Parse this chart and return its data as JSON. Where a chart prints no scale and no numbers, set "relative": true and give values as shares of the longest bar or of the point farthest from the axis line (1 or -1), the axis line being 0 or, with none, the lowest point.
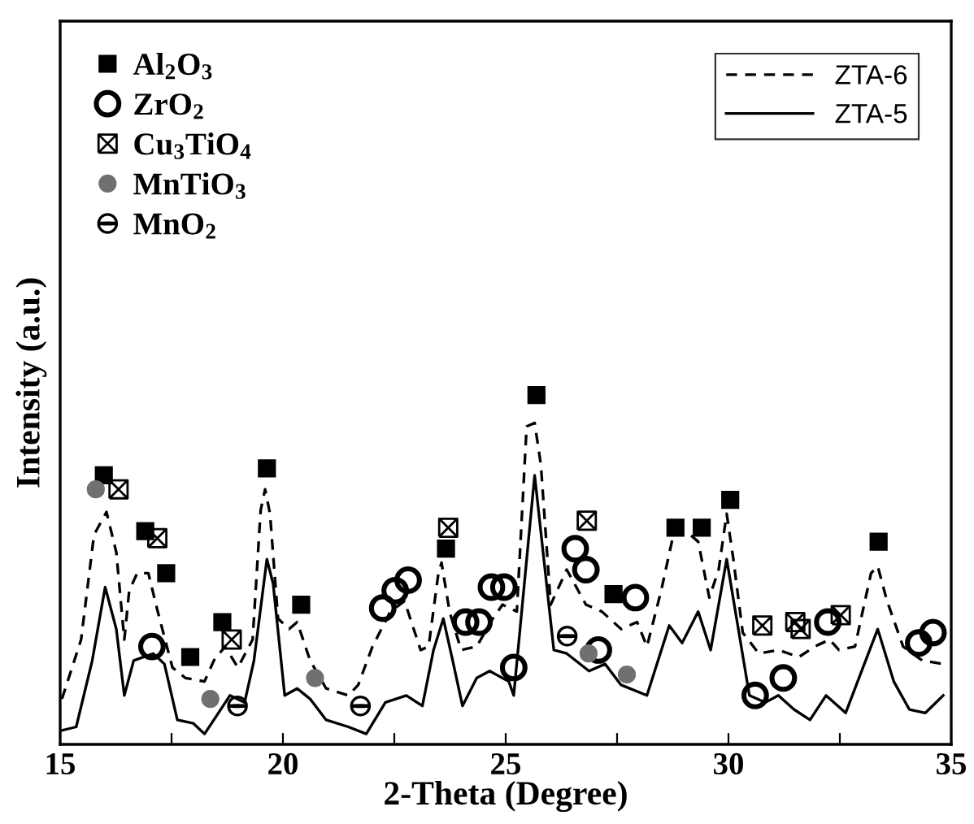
{
  "chart_data": {
    "type": "line",
    "xlabel": "2-Theta (Degree)",
    "ylabel": "Intensity (a.u.)",
    "relative": true,
    "xlim": [
      15,
      35
    ],
    "xticks": [
      15,
      {
        "value": 17.5,
        "label": null
      },
      20,
      {
        "value": 22.5,
        "label": null
      },
      25,
      {
        "value": 27.5,
        "label": null
      },
      30,
      {
        "value": 32.5,
        "label": null
      },
      35
    ],
    "tick_labels": "x",
    "grid": false,
    "legend": "top right",
    "series": [
      {
        "name": "ZTA-6",
        "line_style": "dashed",
        "color": "#000000",
        "x": [
          15.04,
          15.47,
          15.76,
          16.04,
          16.26,
          16.44,
          16.55,
          16.73,
          16.98,
          17.19,
          17.52,
          17.81,
          18.24,
          18.45,
          18.7,
          18.99,
          19.32,
          19.5,
          19.6,
          19.71,
          19.89,
          20.14,
          20.32,
          20.61,
          20.97,
          21.47,
          21.69,
          22.01,
          22.41,
          22.73,
          23.09,
          23.27,
          23.49,
          23.56,
          23.74,
          24.0,
          24.35,
          24.71,
          24.93,
          25.25,
          25.47,
          25.65,
          25.79,
          26.01,
          26.37,
          26.8,
          27.16,
          27.59,
          27.95,
          28.17,
          28.49,
          28.78,
          29.14,
          29.32,
          29.57,
          29.78,
          29.96,
          30.11,
          30.32,
          30.68,
          31.12,
          31.58,
          31.94,
          32.27,
          32.48,
          32.84,
          33.2,
          33.35,
          33.56,
          33.92,
          34.35,
          34.82
        ],
        "values": [
          0.13,
          0.3,
          0.6,
          0.665,
          0.55,
          0.3,
          0.44,
          0.49,
          0.49,
          0.38,
          0.22,
          0.19,
          0.18,
          0.24,
          0.28,
          0.22,
          0.3,
          0.67,
          0.73,
          0.66,
          0.36,
          0.33,
          0.35,
          0.24,
          0.16,
          0.14,
          0.17,
          0.28,
          0.38,
          0.41,
          0.27,
          0.28,
          0.49,
          0.52,
          0.38,
          0.27,
          0.28,
          0.36,
          0.4,
          0.38,
          0.91,
          0.92,
          0.8,
          0.4,
          0.5,
          0.4,
          0.38,
          0.33,
          0.35,
          0.28,
          0.44,
          0.61,
          0.6,
          0.58,
          0.42,
          0.5,
          0.66,
          0.53,
          0.32,
          0.26,
          0.27,
          0.25,
          0.28,
          0.3,
          0.27,
          0.28,
          0.49,
          0.51,
          0.41,
          0.28,
          0.24,
          0.23
        ]
      },
      {
        "name": "ZTA-5",
        "line_style": "solid",
        "color": "#000000",
        "x": [
          15.04,
          15.36,
          15.72,
          16.01,
          16.26,
          16.44,
          16.65,
          17.09,
          17.34,
          17.63,
          17.99,
          18.24,
          18.45,
          18.81,
          19.14,
          19.35,
          19.64,
          19.78,
          20.04,
          20.32,
          20.61,
          20.97,
          21.47,
          21.87,
          22.3,
          22.77,
          23.13,
          23.38,
          23.6,
          23.81,
          24.03,
          24.35,
          24.64,
          25.07,
          25.18,
          25.65,
          26.08,
          26.37,
          26.87,
          27.23,
          27.59,
          28.17,
          28.67,
          28.96,
          29.32,
          29.6,
          29.96,
          30.47,
          30.83,
          31.12,
          31.47,
          31.83,
          32.19,
          32.63,
          32.99,
          33.35,
          33.71,
          34.06,
          34.42,
          34.82
        ],
        "values": [
          0.04,
          0.05,
          0.24,
          0.45,
          0.33,
          0.14,
          0.24,
          0.26,
          0.23,
          0.07,
          0.06,
          0.03,
          0.07,
          0.14,
          0.12,
          0.24,
          0.53,
          0.46,
          0.14,
          0.16,
          0.13,
          0.07,
          0.05,
          0.03,
          0.12,
          0.14,
          0.11,
          0.27,
          0.36,
          0.24,
          0.11,
          0.19,
          0.21,
          0.18,
          0.14,
          0.77,
          0.27,
          0.26,
          0.21,
          0.23,
          0.17,
          0.14,
          0.34,
          0.29,
          0.38,
          0.27,
          0.53,
          0.14,
          0.12,
          0.14,
          0.1,
          0.07,
          0.14,
          0.09,
          0.21,
          0.33,
          0.18,
          0.1,
          0.09,
          0.14
        ]
      },
      {
        "name": "Al$_{2}$O$_{3}$",
        "type": "scatter",
        "marker": "square",
        "color": "#000000",
        "x": [
          15.98,
          16.91,
          17.38,
          17.92,
          18.64,
          19.64,
          20.41,
          23.66,
          25.69,
          27.42,
          28.81,
          29.4,
          30.04,
          33.37
        ],
        "values": [
          0.77,
          0.61,
          0.49,
          0.25,
          0.35,
          0.79,
          0.4,
          0.56,
          1.0,
          0.43,
          0.62,
          0.62,
          0.7,
          0.58
        ]
      },
      {
        "name": "ZrO$_{2}$",
        "type": "scatter",
        "marker": "circle",
        "color": "#000000",
        "x": [
          17.06,
          22.24,
          22.52,
          22.81,
          24.1,
          24.4,
          24.68,
          24.96,
          25.18,
          26.56,
          26.8,
          27.08,
          27.91,
          30.6,
          31.23,
          32.23,
          34.27,
          34.59
        ],
        "values": [
          0.28,
          0.39,
          0.44,
          0.47,
          0.35,
          0.35,
          0.45,
          0.45,
          0.22,
          0.56,
          0.5,
          0.27,
          0.42,
          0.14,
          0.19,
          0.35,
          0.29,
          0.32
        ]
      },
      {
        "name": "Cu$_{3}$TiO$_{4}$",
        "type": "scatter",
        "marker": "cross",
        "color": "#000000",
        "x": [
          16.31,
          17.18,
          18.85,
          23.71,
          26.82,
          30.76,
          31.5,
          31.62,
          32.52
        ],
        "values": [
          0.73,
          0.59,
          0.3,
          0.62,
          0.64,
          0.34,
          0.35,
          0.33,
          0.37
        ]
      },
      {
        "name": "MnTiO$_{3}$",
        "type": "scatter",
        "marker": "circle",
        "color": "#707070",
        "x": [
          15.8,
          18.37,
          20.72,
          26.86,
          27.72
        ],
        "values": [
          0.73,
          0.13,
          0.19,
          0.26,
          0.2
        ]
      },
      {
        "name": "MnO$_{2}$",
        "type": "scatter",
        "marker": "circle",
        "color": "#000000",
        "x": [
          18.98,
          21.74,
          26.38
        ],
        "values": [
          0.11,
          0.11,
          0.31
        ]
      }
    ]
  }
}
